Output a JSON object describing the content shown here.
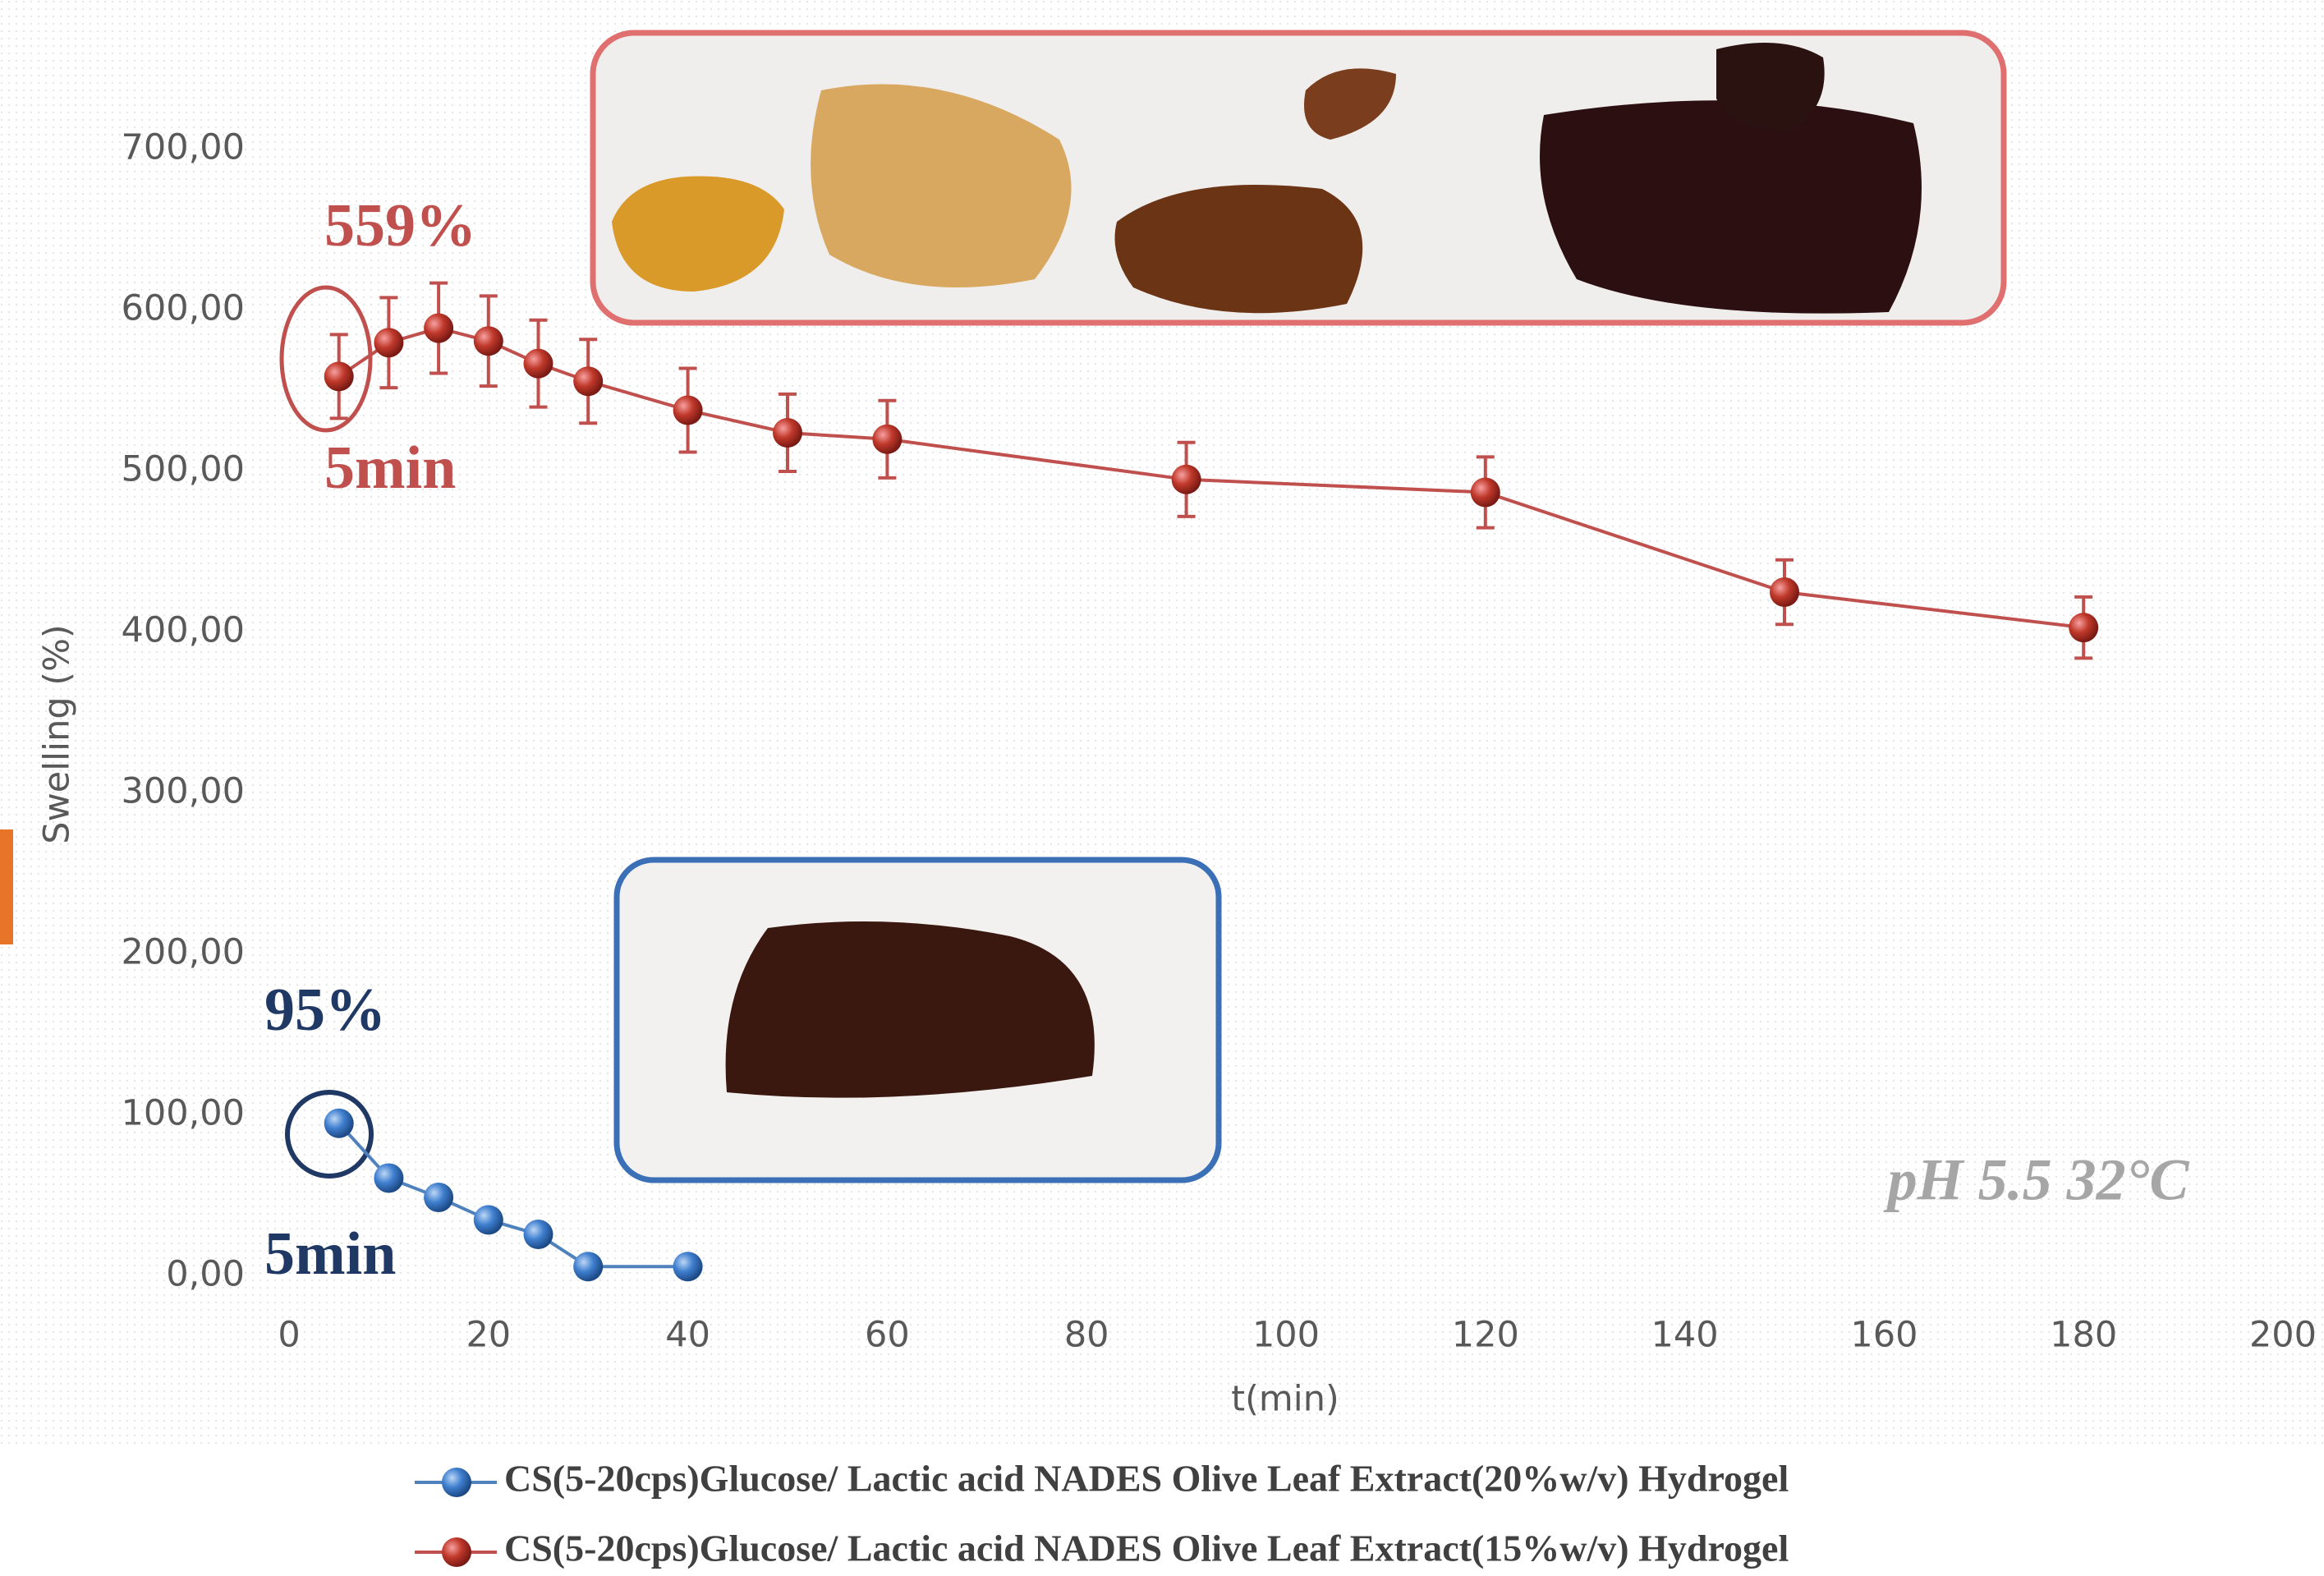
{
  "chart_data": {
    "type": "line",
    "x_label": "t(min)",
    "y_label": "Swelling (%)",
    "xlim": [
      0,
      200
    ],
    "xticks": [
      0,
      20,
      40,
      60,
      80,
      100,
      120,
      140,
      160,
      180,
      200
    ],
    "ylim": [
      0,
      700
    ],
    "yticks": [
      {
        "value": 0,
        "label": "0,00"
      },
      {
        "value": 100,
        "label": "100,00"
      },
      {
        "value": 200,
        "label": "200,00"
      },
      {
        "value": 300,
        "label": "300,00"
      },
      {
        "value": 400,
        "label": "400,00"
      },
      {
        "value": 500,
        "label": "500,00"
      },
      {
        "value": 600,
        "label": "600,00"
      },
      {
        "value": 700,
        "label": "700,00"
      }
    ],
    "grid": false,
    "series": [
      {
        "name": "CS(5-20cps)Glucose/ Lactic acid NADES Olive Leaf Extract(20%w/v) Hydrogel",
        "color": "#4f81bd",
        "x": [
          5,
          10,
          15,
          20,
          25,
          30,
          40
        ],
        "values": [
          95,
          61,
          49,
          35,
          26,
          6,
          6
        ]
      },
      {
        "name": "CS(5-20cps)Glucose/ Lactic acid NADES Olive Leaf Extract(15%w/v) Hydrogel",
        "color": "#c0504d",
        "x": [
          5,
          10,
          15,
          20,
          25,
          30,
          40,
          50,
          60,
          90,
          120,
          150,
          180
        ],
        "values": [
          559,
          580,
          589,
          581,
          567,
          556,
          538,
          524,
          520,
          495,
          487,
          425,
          403
        ],
        "errors": [
          26,
          28,
          28,
          28,
          27,
          26,
          26,
          24,
          24,
          23,
          22,
          20,
          19
        ]
      }
    ],
    "annotations": [
      "559%",
      "5min",
      "95%",
      "5min",
      "pH 5.5 32°C"
    ]
  }
}
